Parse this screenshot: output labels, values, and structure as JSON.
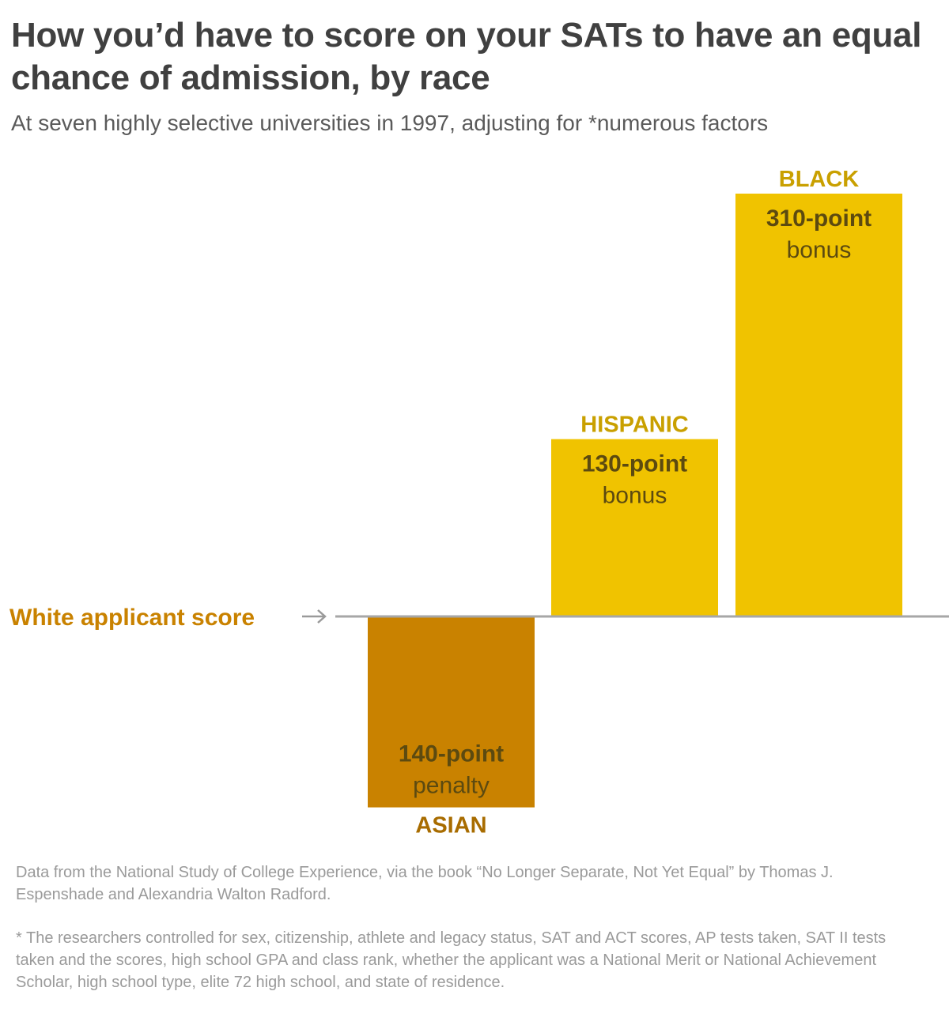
{
  "header": {
    "title": "How you’d have to score on your SATs to have an equal chance of admission, by race",
    "subtitle": "At seven highly selective universities in 1997, adjusting for *numerous factors"
  },
  "chart_data": {
    "type": "bar",
    "baseline_label": "White applicant score",
    "categories": [
      "ASIAN",
      "HISPANIC",
      "BLACK"
    ],
    "values": [
      -140,
      130,
      310
    ],
    "value_labels": [
      {
        "amount": "140-point",
        "kind": "penalty"
      },
      {
        "amount": "130-point",
        "kind": "bonus"
      },
      {
        "amount": "310-point",
        "kind": "bonus"
      }
    ],
    "colors": [
      "#c98200",
      "#f0c300",
      "#f0c300"
    ],
    "category_label_colors": [
      "#a86c00",
      "#c9a000",
      "#c9a000"
    ],
    "value_text_color": "#5c4a10",
    "baseline_label_color": "#c98200",
    "baseline_color": "#a7a7a7",
    "ylim": [
      -160,
      330
    ],
    "grid": false
  },
  "footer": {
    "source": "Data from the National Study of College Experience, via the book “No Longer Separate, Not Yet Equal” by Thomas J. Espenshade and Alexandria Walton Radford.",
    "note": "* The researchers controlled for sex, citizenship, athlete and legacy status, SAT and ACT scores, AP tests taken, SAT II tests taken and the scores, high school GPA and class rank, whether the applicant was a National Merit or National Achievement Scholar, high school type, elite 72 high school, and state of residence."
  }
}
